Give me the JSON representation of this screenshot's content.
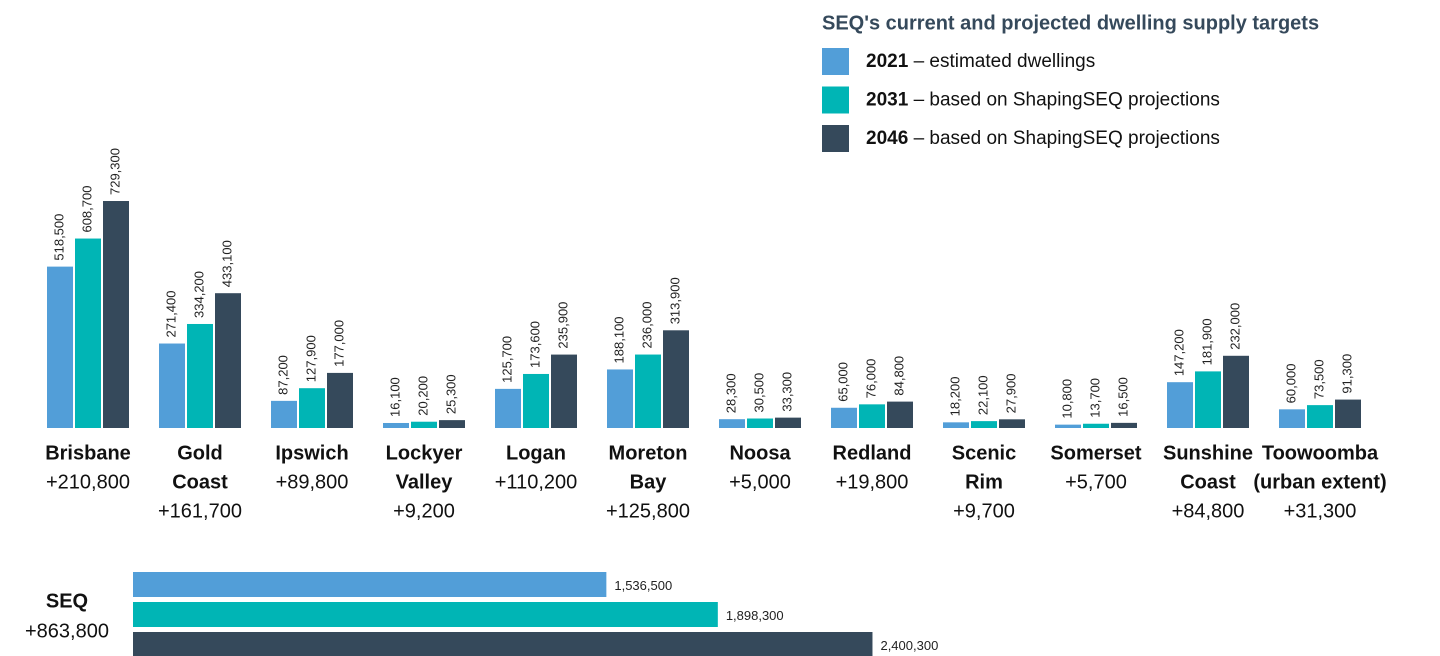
{
  "chart_data": [
    {
      "type": "bar",
      "title": "SEQ's current and projected dwelling supply targets",
      "categories": [
        [
          "Brisbane"
        ],
        [
          "Gold",
          "Coast"
        ],
        [
          "Ipswich"
        ],
        [
          "Lockyer",
          "Valley"
        ],
        [
          "Logan"
        ],
        [
          "Moreton",
          "Bay"
        ],
        [
          "Noosa"
        ],
        [
          "Redland"
        ],
        [
          "Scenic",
          "Rim"
        ],
        [
          "Somerset"
        ],
        [
          "Sunshine",
          "Coast"
        ],
        [
          "Toowoomba",
          "(urban extent)"
        ]
      ],
      "category_notes": [
        "+210,800",
        "+161,700",
        "+89,800",
        "+9,200",
        "+110,200",
        "+125,800",
        "+5,000",
        "+19,800",
        "+9,700",
        "+5,700",
        "+84,800",
        "+31,300"
      ],
      "series": [
        {
          "name": "2021",
          "description": "– estimated dwellings",
          "color": "#529ed8",
          "values": [
            518500,
            271400,
            87200,
            16100,
            125700,
            188100,
            28300,
            65000,
            18200,
            10800,
            147200,
            60000
          ],
          "value_labels": [
            "518,500",
            "271,400",
            "87,200",
            "16,100",
            "125,700",
            "188,100",
            "28,300",
            "65,000",
            "18,200",
            "10,800",
            "147,200",
            "60,000"
          ]
        },
        {
          "name": "2031",
          "description": "– based on ShapingSEQ projections",
          "color": "#00b5b5",
          "values": [
            608700,
            334200,
            127900,
            20200,
            173600,
            236000,
            30500,
            76000,
            22100,
            13700,
            181900,
            73500
          ],
          "value_labels": [
            "608,700",
            "334,200",
            "127,900",
            "20,200",
            "173,600",
            "236,000",
            "30,500",
            "76,000",
            "22,100",
            "13,700",
            "181,900",
            "73,500"
          ]
        },
        {
          "name": "2046",
          "description": "– based on ShapingSEQ projections",
          "color": "#35495b",
          "values": [
            729300,
            433100,
            177000,
            25300,
            235900,
            313900,
            33300,
            84800,
            27900,
            16500,
            232000,
            91300
          ],
          "value_labels": [
            "729,300",
            "433,100",
            "177,000",
            "25,300",
            "235,900",
            "313,900",
            "33,300",
            "84,800",
            "27,900",
            "16,500",
            "232,000",
            "91,300"
          ]
        }
      ],
      "ylim": [
        0,
        800000
      ]
    },
    {
      "type": "hbar",
      "categories": [
        "SEQ"
      ],
      "category_notes": [
        "+863,800"
      ],
      "series": [
        {
          "color": "#529ed8",
          "values": [
            1536500
          ],
          "value_labels": [
            "1,536,500"
          ]
        },
        {
          "color": "#00b5b5",
          "values": [
            1898300
          ],
          "value_labels": [
            "1,898,300"
          ]
        },
        {
          "color": "#35495b",
          "values": [
            2400300
          ],
          "value_labels": [
            "2,400,300"
          ]
        }
      ],
      "xlim": [
        0,
        2600000
      ]
    }
  ]
}
